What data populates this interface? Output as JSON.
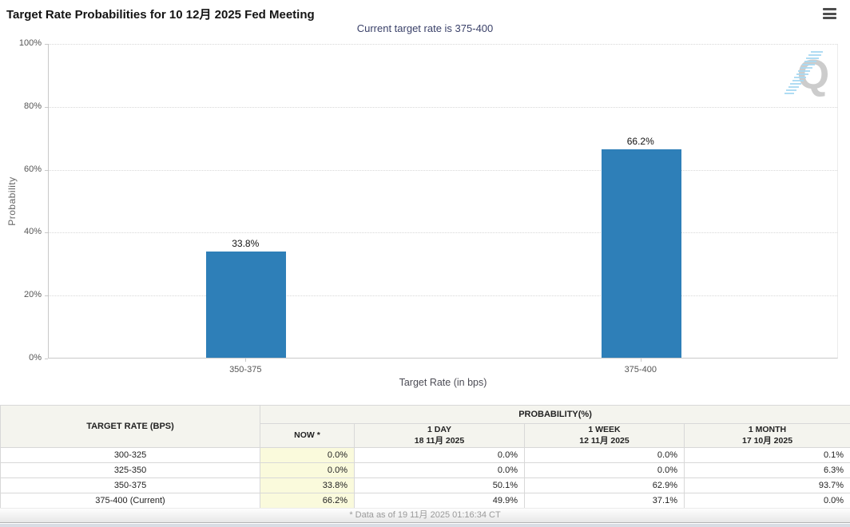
{
  "header": {
    "title": "Target Rate Probabilities for 10 12月 2025 Fed Meeting",
    "subtitle": "Current target rate is 375-400"
  },
  "chart_data": {
    "type": "bar",
    "categories": [
      "350-375",
      "375-400"
    ],
    "values": [
      33.8,
      66.2
    ],
    "bar_labels": [
      "33.8%",
      "66.2%"
    ],
    "xlabel": "Target Rate (in bps)",
    "ylabel": "Probability",
    "ylim": [
      0,
      100
    ],
    "yticks": [
      "0%",
      "20%",
      "40%",
      "60%",
      "80%",
      "100%"
    ],
    "grid": "horizontal-dotted",
    "legend": "none",
    "bar_color": "#2e7fb8"
  },
  "table": {
    "col1_header": "TARGET RATE (BPS)",
    "group_header": "PROBABILITY(%)",
    "columns": [
      {
        "label": "NOW *",
        "sub": ""
      },
      {
        "label": "1 DAY",
        "sub": "18 11月 2025"
      },
      {
        "label": "1 WEEK",
        "sub": "12 11月 2025"
      },
      {
        "label": "1 MONTH",
        "sub": "17 10月 2025"
      }
    ],
    "rows": [
      {
        "rate": "300-325",
        "now": "0.0%",
        "day": "0.0%",
        "week": "0.0%",
        "month": "0.1%"
      },
      {
        "rate": "325-350",
        "now": "0.0%",
        "day": "0.0%",
        "week": "0.0%",
        "month": "6.3%"
      },
      {
        "rate": "350-375",
        "now": "33.8%",
        "day": "50.1%",
        "week": "62.9%",
        "month": "93.7%"
      },
      {
        "rate": "375-400 (Current)",
        "now": "66.2%",
        "day": "49.9%",
        "week": "37.1%",
        "month": "0.0%"
      }
    ]
  },
  "footer": {
    "note": "* Data as of 19 11月 2025 01:16:34 CT"
  },
  "colors": {
    "bar": "#2e7fb8",
    "subtitle_text": "#3a4169",
    "now_column_bg": "#fafadc",
    "table_header_bg": "#f4f4ee"
  }
}
